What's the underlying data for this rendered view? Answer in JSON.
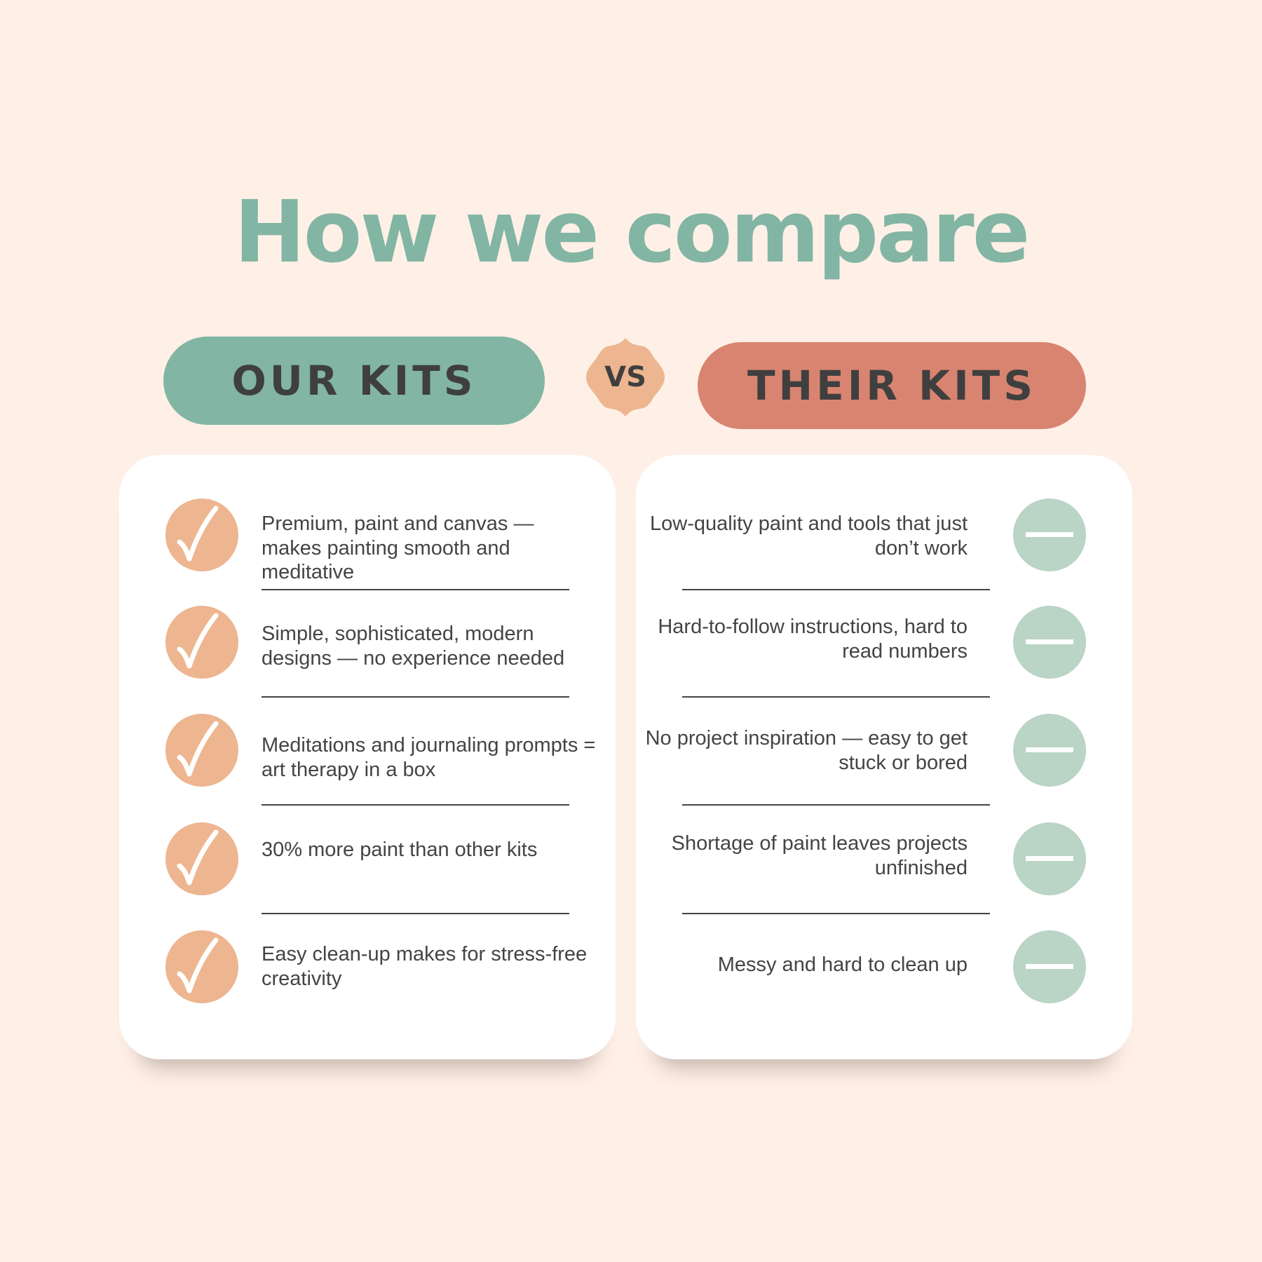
{
  "title": "How we compare",
  "ours": {
    "label": "OUR KITS",
    "icon": "checkmark-icon",
    "color": "#82b5a3",
    "items": [
      "Premium, paint and canvas — makes painting smooth and meditative",
      "Simple, sophisticated, modern designs — no experience needed",
      "Meditations and journaling prompts =  art therapy in a box",
      "30% more paint than other kits",
      "Easy clean-up makes for stress-free creativity"
    ]
  },
  "vs_label": "VS",
  "theirs": {
    "label": "THEIR KITS",
    "icon": "minus-icon",
    "color": "#d98470",
    "items": [
      "Low-quality paint and tools that just don’t work",
      "Hard-to-follow instructions, hard to read numbers",
      "No project inspiration — easy to get stuck or bored",
      "Shortage of paint leaves projects unfinished",
      "Messy and hard to clean up"
    ]
  }
}
